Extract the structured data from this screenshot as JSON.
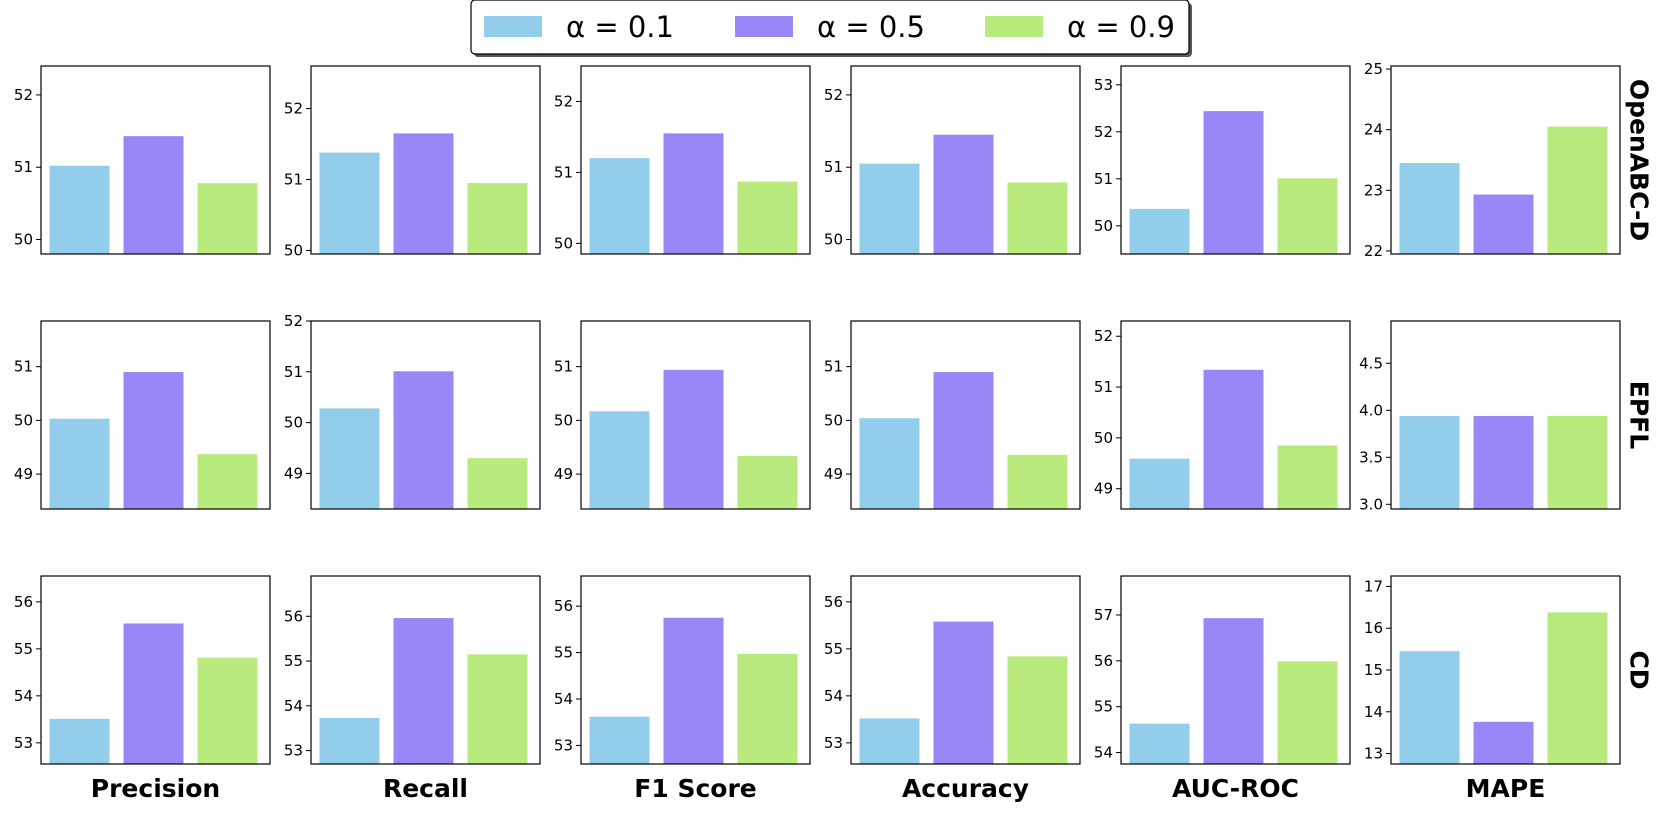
{
  "chart_data": {
    "type": "bar",
    "legend": {
      "placement": "top-center",
      "entries": [
        "α = 0.1",
        "α = 0.5",
        "α = 0.9"
      ]
    },
    "colors": [
      "#92cdec",
      "#9887f6",
      "#b8ea7e"
    ],
    "columns": [
      "Precision",
      "Recall",
      "F1 Score",
      "Accuracy",
      "AUC-ROC",
      "MAPE"
    ],
    "rows": [
      "OpenABC-D",
      "EPFL",
      "CD"
    ],
    "panels": [
      [
        {
          "ylim": [
            49.8,
            52.4
          ],
          "ticks": [
            50,
            51,
            52
          ],
          "values": [
            51.02,
            51.43,
            50.78
          ]
        },
        {
          "ylim": [
            49.95,
            52.6
          ],
          "ticks": [
            50,
            51,
            52
          ],
          "values": [
            51.38,
            51.65,
            50.95
          ]
        },
        {
          "ylim": [
            49.85,
            52.5
          ],
          "ticks": [
            50,
            51,
            52
          ],
          "values": [
            51.2,
            51.55,
            50.87
          ]
        },
        {
          "ylim": [
            49.8,
            52.4
          ],
          "ticks": [
            50,
            51,
            52
          ],
          "values": [
            51.05,
            51.45,
            50.79
          ]
        },
        {
          "ylim": [
            49.4,
            53.4
          ],
          "ticks": [
            50,
            51,
            52,
            53
          ],
          "values": [
            50.36,
            52.44,
            51.01
          ]
        },
        {
          "ylim": [
            21.95,
            25.05
          ],
          "ticks": [
            22,
            23,
            24,
            25
          ],
          "values": [
            23.45,
            22.93,
            24.05
          ]
        }
      ],
      [
        {
          "ylim": [
            48.35,
            51.85
          ],
          "ticks": [
            49,
            50,
            51
          ],
          "values": [
            50.03,
            50.9,
            49.37
          ]
        },
        {
          "ylim": [
            48.3,
            52.0
          ],
          "ticks": [
            49,
            50,
            51,
            52
          ],
          "values": [
            50.28,
            51.01,
            49.3
          ]
        },
        {
          "ylim": [
            48.35,
            51.85
          ],
          "ticks": [
            49,
            50,
            51
          ],
          "values": [
            50.17,
            50.94,
            49.34
          ]
        },
        {
          "ylim": [
            48.35,
            51.85
          ],
          "ticks": [
            49,
            50,
            51
          ],
          "values": [
            50.04,
            50.9,
            49.36
          ]
        },
        {
          "ylim": [
            48.6,
            52.3
          ],
          "ticks": [
            49,
            50,
            51,
            52
          ],
          "values": [
            49.59,
            51.34,
            49.85
          ]
        },
        {
          "ylim": [
            2.95,
            4.95
          ],
          "ticks": [
            3.0,
            3.5,
            4.0,
            4.5
          ],
          "values": [
            3.94,
            3.94,
            3.94
          ]
        }
      ],
      [
        {
          "ylim": [
            52.55,
            56.55
          ],
          "ticks": [
            53,
            54,
            55,
            56
          ],
          "values": [
            53.51,
            55.54,
            54.81
          ]
        },
        {
          "ylim": [
            52.7,
            56.9
          ],
          "ticks": [
            53,
            54,
            55,
            56
          ],
          "values": [
            53.73,
            55.96,
            55.15
          ]
        },
        {
          "ylim": [
            52.6,
            56.65
          ],
          "ticks": [
            53,
            54,
            55,
            56
          ],
          "values": [
            53.62,
            55.75,
            54.97
          ]
        },
        {
          "ylim": [
            52.55,
            56.55
          ],
          "ticks": [
            53,
            54,
            55,
            56
          ],
          "values": [
            53.52,
            55.58,
            54.84
          ]
        },
        {
          "ylim": [
            53.75,
            57.85
          ],
          "ticks": [
            54,
            55,
            56,
            57
          ],
          "values": [
            54.63,
            56.93,
            55.99
          ]
        },
        {
          "ylim": [
            12.75,
            17.25
          ],
          "ticks": [
            13,
            14,
            15,
            16,
            17
          ],
          "values": [
            15.45,
            13.76,
            16.38
          ]
        }
      ]
    ],
    "grid": false
  }
}
